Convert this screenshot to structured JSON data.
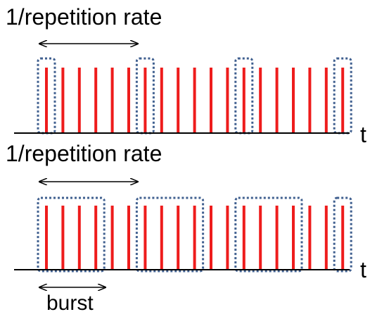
{
  "labels": {
    "top_period": "1/repetition rate",
    "top_axis": "t",
    "bottom_period": "1/repetition rate",
    "bottom_axis": "t",
    "burst": "burst"
  },
  "colors": {
    "pulse": "#ee1c1c",
    "box": "#3f5f8f",
    "axis": "#000000"
  },
  "diagrams": [
    {
      "name": "single-pulse-selection",
      "pulse_count": 19,
      "pulses_per_period": 6,
      "highlighted_pulses_per_period": 1
    },
    {
      "name": "burst-selection",
      "pulse_count": 19,
      "pulses_per_period": 6,
      "highlighted_pulses_per_period": 4
    }
  ]
}
